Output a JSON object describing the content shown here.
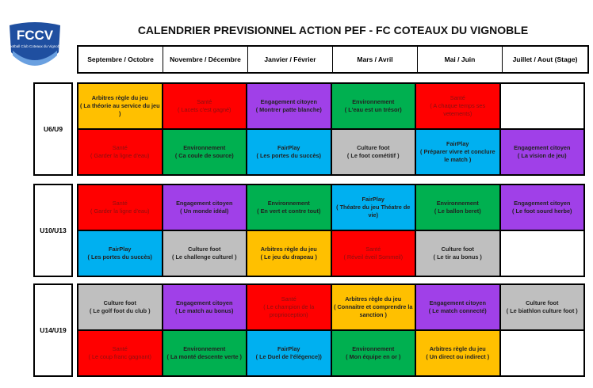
{
  "logo": {
    "text": "FCCV",
    "subtitle": "Football Club Coteaux du Vignoble"
  },
  "title": "CALENDRIER PREVISIONNEL ACTION PEF - FC COTEAUX DU VIGNOBLE",
  "columns": [
    "Septembre / Octobre",
    "Novembre / Décembre",
    "Janvier / Février",
    "Mars / Avril",
    "Mai / Juin",
    "Juillet / Aout (Stage)"
  ],
  "colors": {
    "Arbitres": "#ffc000",
    "Santé": "#ff0000",
    "Engagement": "#a040e8",
    "Environnement": "#00b050",
    "Culture": "#bfbfbf",
    "FairPlay": "#00b0f0",
    "empty": "#ffffff"
  },
  "groups": [
    {
      "label": "U6/U9",
      "rows": [
        [
          {
            "t": "Arbitres règle du jeu",
            "s": "( La théorie au service du jeu )",
            "c": "Arbitres"
          },
          {
            "t": "Santé",
            "s": "( Lacets c'est gagné)",
            "c": "Santé"
          },
          {
            "t": "Engagement citoyen",
            "s": "( Montrer patte blanche)",
            "c": "Engagement"
          },
          {
            "t": "Environnement",
            "s": "( L'eau est un trésor)",
            "c": "Environnement"
          },
          {
            "t": "Santé",
            "s": "( A chaque temps ses vetements)",
            "c": "Santé"
          },
          {
            "t": "",
            "s": "",
            "c": "empty"
          }
        ],
        [
          {
            "t": "Santé",
            "s": "( Garder la ligne d'eau)",
            "c": "Santé"
          },
          {
            "t": "Environnement",
            "s": "( Ca coule de source)",
            "c": "Environnement"
          },
          {
            "t": "FairPlay",
            "s": "( Les portes du succès)",
            "c": "FairPlay"
          },
          {
            "t": "Culture foot",
            "s": "( Le foot cométitif )",
            "c": "Culture"
          },
          {
            "t": "FairPlay",
            "s": "( Préparer vivre et  conclure le match )",
            "c": "FairPlay"
          },
          {
            "t": "Engagement citoyen",
            "s": "( La vision de jeu)",
            "c": "Engagement"
          }
        ]
      ]
    },
    {
      "label": "U10/U13",
      "rows": [
        [
          {
            "t": "Santé",
            "s": "( Garder la ligne d'eau)",
            "c": "Santé"
          },
          {
            "t": "Engagement citoyen",
            "s": "( Un monde idéal)",
            "c": "Engagement"
          },
          {
            "t": "Environnement",
            "s": "( En vert et contre tout)",
            "c": "Environnement"
          },
          {
            "t": "FairPlay",
            "s": "( Théatre du jeu Théatre de vie)",
            "c": "FairPlay"
          },
          {
            "t": "Environnement",
            "s": "( Le ballon beret)",
            "c": "Environnement"
          },
          {
            "t": "Engagement citoyen",
            "s": "( Le foot sourd herbe)",
            "c": "Engagement"
          }
        ],
        [
          {
            "t": "FairPlay",
            "s": "( Les portes du succès)",
            "c": "FairPlay"
          },
          {
            "t": "Culture foot",
            "s": "( Le challenge culturel )",
            "c": "Culture"
          },
          {
            "t": "Arbitres règle du jeu",
            "s": "( Le jeu du drapeau )",
            "c": "Arbitres"
          },
          {
            "t": "Santé",
            "s": "( Réveil éveil Sommeil)",
            "c": "Santé"
          },
          {
            "t": "Culture foot",
            "s": "( Le tir au bonus )",
            "c": "Culture"
          },
          {
            "t": "",
            "s": "",
            "c": "empty"
          }
        ]
      ]
    },
    {
      "label": "U14/U19",
      "rows": [
        [
          {
            "t": "Culture foot",
            "s": "( Le golf foot du club )",
            "c": "Culture"
          },
          {
            "t": "Engagement citoyen",
            "s": "( Le match au bonus)",
            "c": "Engagement"
          },
          {
            "t": "Santé",
            "s": "( Le champion de la proprioception)",
            "c": "Santé"
          },
          {
            "t": "Arbitres règle du jeu",
            "s": "( Connaitre et comprendre la sanction )",
            "c": "Arbitres"
          },
          {
            "t": "Engagement citoyen",
            "s": "( Le match connecté)",
            "c": "Engagement"
          },
          {
            "t": "Culture foot",
            "s": "( Le biathlon culture foot )",
            "c": "Culture"
          }
        ],
        [
          {
            "t": "Santé",
            "s": "( Le coup franc gagnant)",
            "c": "Santé"
          },
          {
            "t": "Environnement",
            "s": "( La monté descente verte )",
            "c": "Environnement"
          },
          {
            "t": "FairPlay",
            "s": "( Le Duel de l'élégence))",
            "c": "FairPlay"
          },
          {
            "t": "Environnement",
            "s": "( Mon équipe en or )",
            "c": "Environnement"
          },
          {
            "t": "Arbitres règle du jeu",
            "s": "( Un direct ou indirect )",
            "c": "Arbitres"
          },
          {
            "t": "",
            "s": "",
            "c": "empty"
          }
        ]
      ]
    }
  ]
}
